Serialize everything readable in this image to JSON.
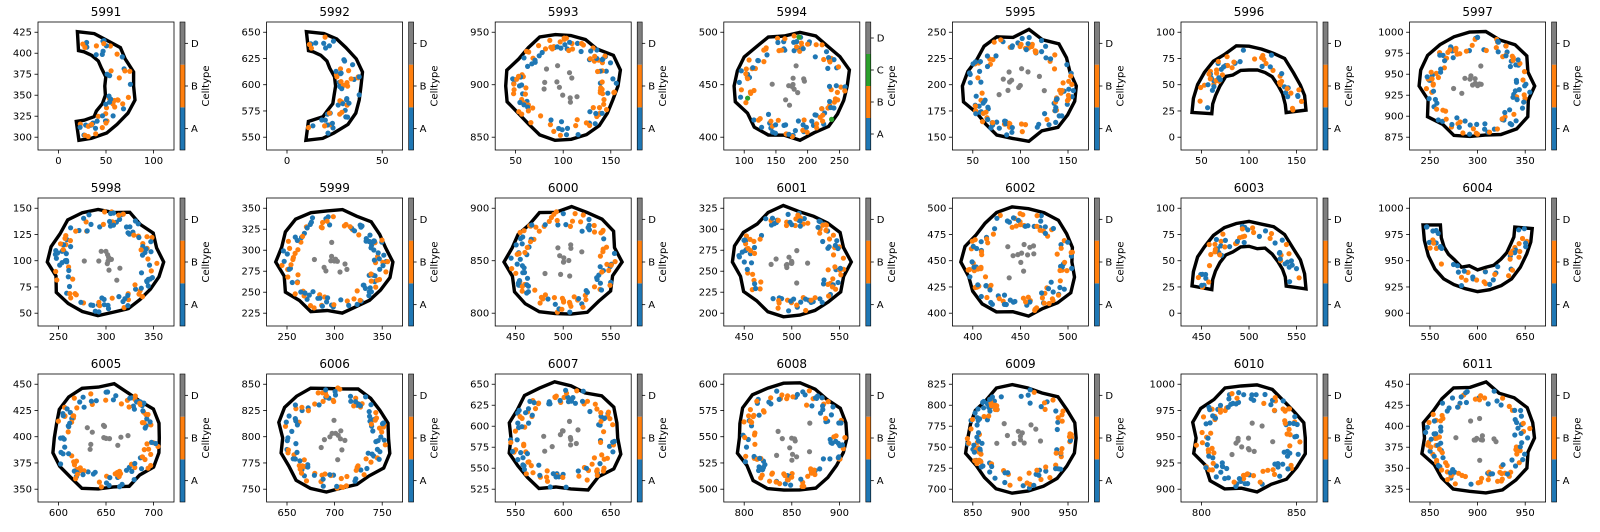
{
  "chart_data": [
    {
      "type": "scatter",
      "title": "5991",
      "xticks": [
        "0",
        "50",
        "100"
      ],
      "yticks": [
        "300",
        "325",
        "350",
        "375",
        "400",
        "425"
      ],
      "colorbar": {
        "label": "Celltype",
        "ticks": [
          "A",
          "B",
          "D"
        ]
      },
      "shape": "crescent-left"
    },
    {
      "type": "scatter",
      "title": "5992",
      "xticks": [
        "0",
        "50"
      ],
      "yticks": [
        "550",
        "575",
        "600",
        "625",
        "650"
      ],
      "colorbar": {
        "label": "Celltype",
        "ticks": [
          "A",
          "B",
          "D"
        ]
      },
      "shape": "crescent-left"
    },
    {
      "type": "scatter",
      "title": "5993",
      "xticks": [
        "50",
        "100",
        "150"
      ],
      "yticks": [
        "850",
        "900",
        "950"
      ],
      "colorbar": {
        "label": "Celltype",
        "ticks": [
          "A",
          "B",
          "D"
        ]
      },
      "shape": "ring"
    },
    {
      "type": "scatter",
      "title": "5994",
      "xticks": [
        "100",
        "150",
        "200",
        "250"
      ],
      "yticks": [
        "400",
        "450",
        "500"
      ],
      "colorbar": {
        "label": "Celltype",
        "ticks": [
          "A",
          "B",
          "C",
          "D"
        ]
      },
      "shape": "ring"
    },
    {
      "type": "scatter",
      "title": "5995",
      "xticks": [
        "50",
        "100",
        "150"
      ],
      "yticks": [
        "150",
        "175",
        "200",
        "225",
        "250"
      ],
      "colorbar": {
        "label": "Celltype",
        "ticks": [
          "A",
          "B",
          "D"
        ]
      },
      "shape": "ring"
    },
    {
      "type": "scatter",
      "title": "5996",
      "xticks": [
        "50",
        "100",
        "150"
      ],
      "yticks": [
        "0",
        "25",
        "50",
        "75",
        "100"
      ],
      "colorbar": {
        "label": "Celltype",
        "ticks": [
          "A",
          "B",
          "D"
        ]
      },
      "shape": "arch"
    },
    {
      "type": "scatter",
      "title": "5997",
      "xticks": [
        "250",
        "300",
        "350"
      ],
      "yticks": [
        "875",
        "900",
        "925",
        "950",
        "975",
        "1000"
      ],
      "colorbar": {
        "label": "Celltype",
        "ticks": [
          "A",
          "B",
          "D"
        ]
      },
      "shape": "ring"
    },
    {
      "type": "scatter",
      "title": "5998",
      "xticks": [
        "250",
        "300",
        "350"
      ],
      "yticks": [
        "50",
        "75",
        "100",
        "125",
        "150"
      ],
      "colorbar": {
        "label": "Celltype",
        "ticks": [
          "A",
          "B",
          "D"
        ]
      },
      "shape": "ring"
    },
    {
      "type": "scatter",
      "title": "5999",
      "xticks": [
        "250",
        "300",
        "350"
      ],
      "yticks": [
        "225",
        "250",
        "275",
        "300",
        "325",
        "350"
      ],
      "colorbar": {
        "label": "Celltype",
        "ticks": [
          "A",
          "B",
          "D"
        ]
      },
      "shape": "ring"
    },
    {
      "type": "scatter",
      "title": "6000",
      "xticks": [
        "450",
        "500",
        "550"
      ],
      "yticks": [
        "800",
        "850",
        "900"
      ],
      "colorbar": {
        "label": "Celltype",
        "ticks": [
          "A",
          "B",
          "D"
        ]
      },
      "shape": "ring"
    },
    {
      "type": "scatter",
      "title": "6001",
      "xticks": [
        "450",
        "500",
        "550"
      ],
      "yticks": [
        "200",
        "225",
        "250",
        "275",
        "300",
        "325"
      ],
      "colorbar": {
        "label": "Celltype",
        "ticks": [
          "A",
          "B",
          "D"
        ]
      },
      "shape": "ring"
    },
    {
      "type": "scatter",
      "title": "6002",
      "xticks": [
        "400",
        "450",
        "500"
      ],
      "yticks": [
        "400",
        "425",
        "450",
        "475",
        "500"
      ],
      "colorbar": {
        "label": "Celltype",
        "ticks": [
          "A",
          "B",
          "D"
        ]
      },
      "shape": "ring"
    },
    {
      "type": "scatter",
      "title": "6003",
      "xticks": [
        "450",
        "500",
        "550"
      ],
      "yticks": [
        "0",
        "25",
        "50",
        "75",
        "100"
      ],
      "colorbar": {
        "label": "Celltype",
        "ticks": [
          "A",
          "B",
          "D"
        ]
      },
      "shape": "arch"
    },
    {
      "type": "scatter",
      "title": "6004",
      "xticks": [
        "550",
        "600",
        "650"
      ],
      "yticks": [
        "900",
        "925",
        "950",
        "975",
        "1000"
      ],
      "colorbar": {
        "label": "Celltype",
        "ticks": [
          "A",
          "B",
          "D"
        ]
      },
      "shape": "cup"
    },
    {
      "type": "scatter",
      "title": "6005",
      "xticks": [
        "600",
        "650",
        "700"
      ],
      "yticks": [
        "350",
        "375",
        "400",
        "425",
        "450"
      ],
      "colorbar": {
        "label": "Celltype",
        "ticks": [
          "A",
          "B",
          "D"
        ]
      },
      "shape": "ring"
    },
    {
      "type": "scatter",
      "title": "6006",
      "xticks": [
        "650",
        "700",
        "750"
      ],
      "yticks": [
        "750",
        "775",
        "800",
        "825",
        "850"
      ],
      "colorbar": {
        "label": "Celltype",
        "ticks": [
          "A",
          "B",
          "D"
        ]
      },
      "shape": "ring"
    },
    {
      "type": "scatter",
      "title": "6007",
      "xticks": [
        "550",
        "600",
        "650"
      ],
      "yticks": [
        "525",
        "550",
        "575",
        "600",
        "625",
        "650"
      ],
      "colorbar": {
        "label": "Celltype",
        "ticks": [
          "A",
          "B",
          "D"
        ]
      },
      "shape": "ring"
    },
    {
      "type": "scatter",
      "title": "6008",
      "xticks": [
        "800",
        "850",
        "900"
      ],
      "yticks": [
        "500",
        "525",
        "550",
        "575",
        "600"
      ],
      "colorbar": {
        "label": "Celltype",
        "ticks": [
          "A",
          "B",
          "D"
        ]
      },
      "shape": "ring"
    },
    {
      "type": "scatter",
      "title": "6009",
      "xticks": [
        "850",
        "900",
        "950"
      ],
      "yticks": [
        "700",
        "725",
        "750",
        "775",
        "800",
        "825"
      ],
      "colorbar": {
        "label": "Celltype",
        "ticks": [
          "A",
          "B",
          "D"
        ]
      },
      "shape": "ring"
    },
    {
      "type": "scatter",
      "title": "6010",
      "xticks": [
        "800",
        "850"
      ],
      "yticks": [
        "900",
        "925",
        "950",
        "975",
        "1000"
      ],
      "colorbar": {
        "label": "Celltype",
        "ticks": [
          "A",
          "B",
          "D"
        ]
      },
      "shape": "ring"
    },
    {
      "type": "scatter",
      "title": "6011",
      "xticks": [
        "850",
        "900",
        "950"
      ],
      "yticks": [
        "325",
        "350",
        "375",
        "400",
        "425",
        "450"
      ],
      "colorbar": {
        "label": "Celltype",
        "ticks": [
          "A",
          "B",
          "D"
        ]
      },
      "shape": "ring"
    }
  ],
  "colors": {
    "A": "#1f77b4",
    "B": "#ff7f0e",
    "C": "#2ca02c",
    "D": "#7f7f7f",
    "outline": "#000000"
  }
}
